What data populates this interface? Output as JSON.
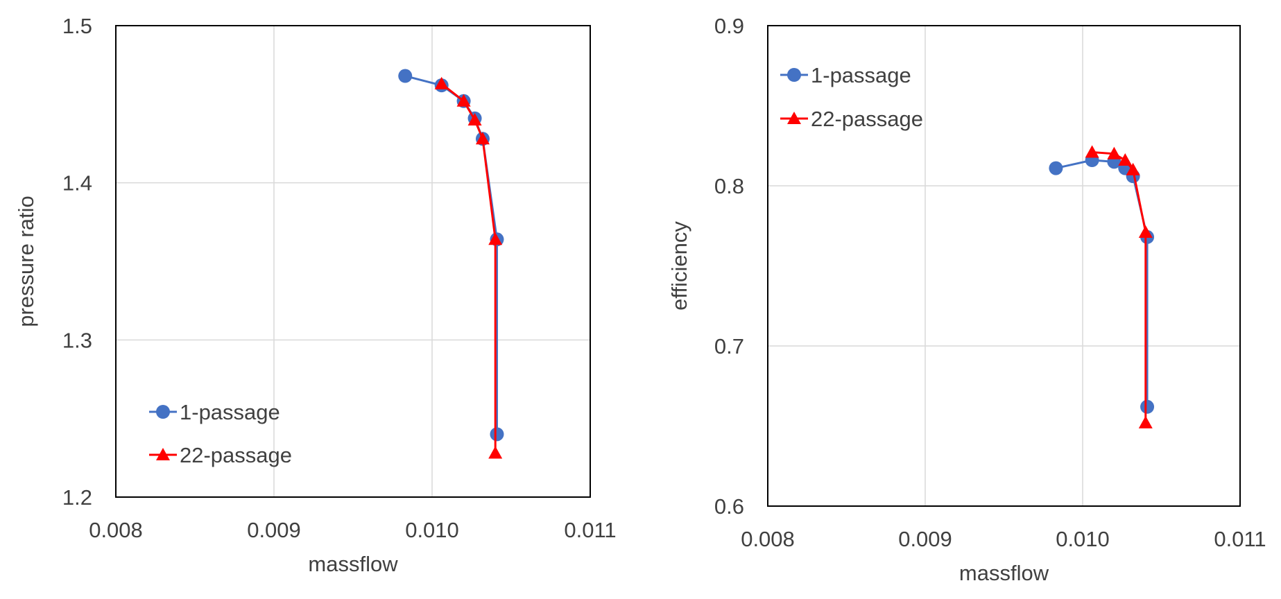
{
  "chart_data": [
    {
      "type": "line",
      "xlabel": "massflow",
      "ylabel": "pressure ratio",
      "xlim": [
        0.008,
        0.011
      ],
      "ylim": [
        1.2,
        1.5
      ],
      "xticks": [
        "0.008",
        "0.009",
        "0.010",
        "0.011"
      ],
      "yticks": [
        "1.2",
        "1.3",
        "1.4",
        "1.5"
      ],
      "grid": true,
      "legend_position": "bottom-left",
      "series": [
        {
          "name": "1-passage",
          "color": "#4472c4",
          "marker": "circle",
          "x": [
            0.00983,
            0.01006,
            0.0102,
            0.01027,
            0.01032,
            0.01041,
            0.01041
          ],
          "y": [
            1.468,
            1.462,
            1.452,
            1.441,
            1.428,
            1.364,
            1.24
          ]
        },
        {
          "name": "22-passage",
          "color": "#ff0000",
          "marker": "triangle",
          "x": [
            0.01006,
            0.0102,
            0.01027,
            0.01032,
            0.0104,
            0.0104
          ],
          "y": [
            1.463,
            1.452,
            1.44,
            1.428,
            1.364,
            1.228
          ]
        }
      ]
    },
    {
      "type": "line",
      "xlabel": "massflow",
      "ylabel": "efficiency",
      "xlim": [
        0.008,
        0.011
      ],
      "ylim": [
        0.6,
        0.9
      ],
      "xticks": [
        "0.008",
        "0.009",
        "0.010",
        "0.011"
      ],
      "yticks": [
        "0.6",
        "0.7",
        "0.8",
        "0.9"
      ],
      "grid": true,
      "legend_position": "top-left",
      "series": [
        {
          "name": "1-passage",
          "color": "#4472c4",
          "marker": "circle",
          "x": [
            0.00983,
            0.01006,
            0.0102,
            0.01027,
            0.01032,
            0.01041,
            0.01041
          ],
          "y": [
            0.811,
            0.816,
            0.815,
            0.811,
            0.806,
            0.768,
            0.662
          ]
        },
        {
          "name": "22-passage",
          "color": "#ff0000",
          "marker": "triangle",
          "x": [
            0.01006,
            0.0102,
            0.01027,
            0.01032,
            0.0104,
            0.0104
          ],
          "y": [
            0.821,
            0.82,
            0.816,
            0.81,
            0.771,
            0.652
          ]
        }
      ]
    }
  ]
}
